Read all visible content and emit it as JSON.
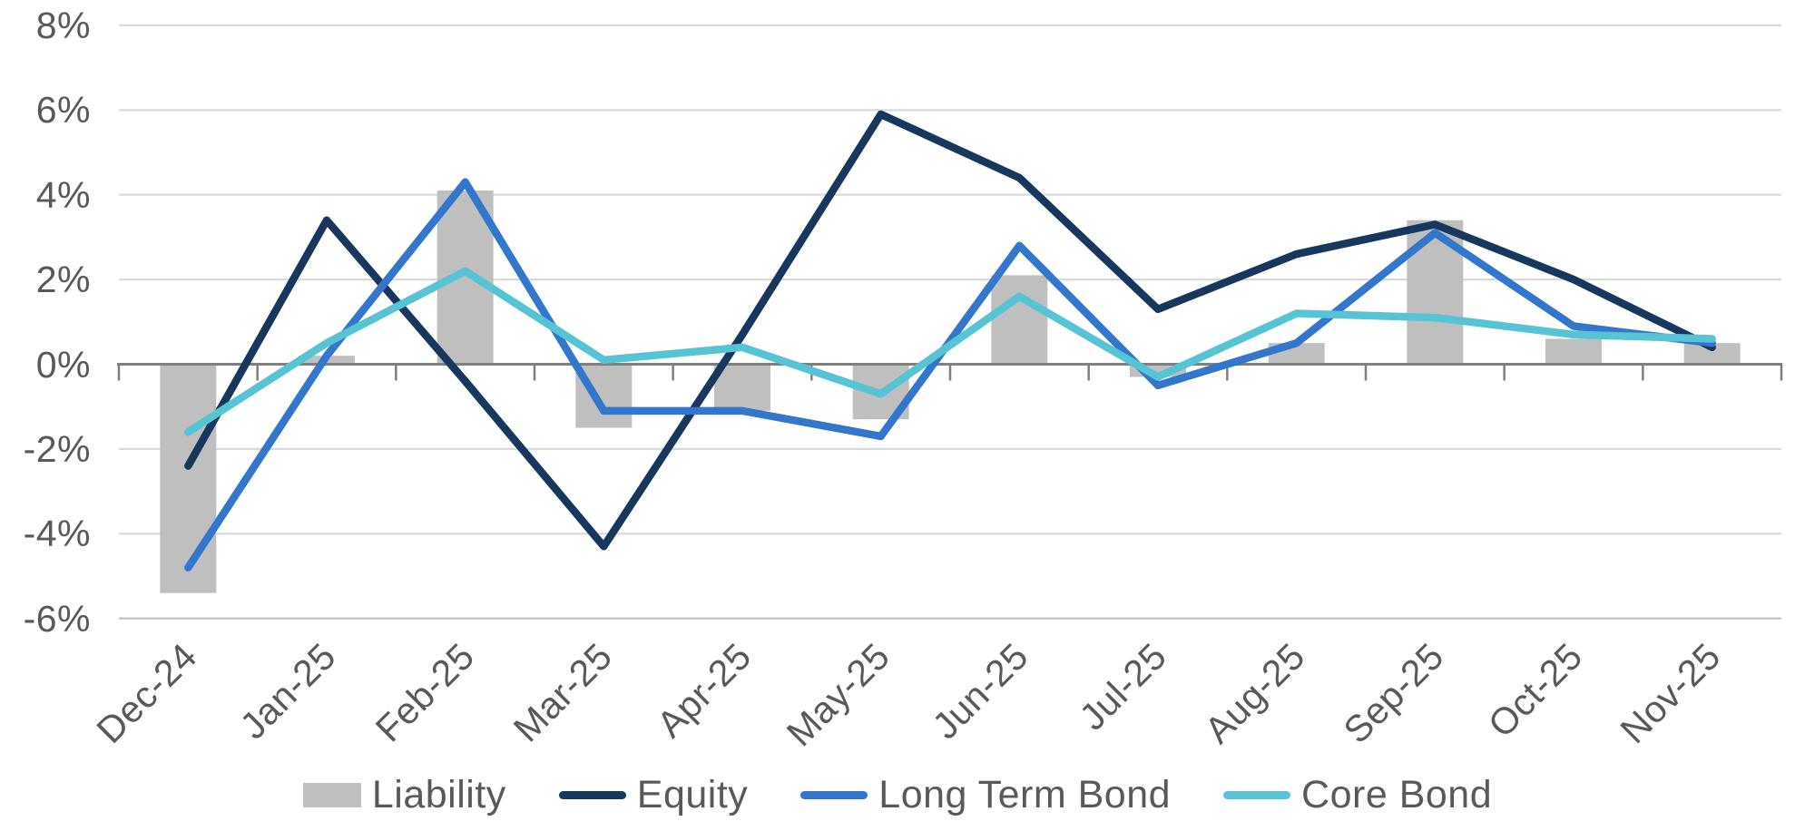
{
  "chart_data": {
    "type": "combo-bar-line",
    "title": "",
    "categories": [
      "Dec-24",
      "Jan-25",
      "Feb-25",
      "Mar-25",
      "Apr-25",
      "May-25",
      "Jun-25",
      "Jul-25",
      "Aug-25",
      "Sep-25",
      "Oct-25",
      "Nov-25"
    ],
    "y_axis": {
      "unit": "%",
      "min": -6,
      "max": 8,
      "step": 2,
      "tick_labels": [
        "8%",
        "6%",
        "4%",
        "2%",
        "0%",
        "-2%",
        "-4%",
        "-6%"
      ]
    },
    "grid": true,
    "legend_position": "bottom",
    "series": [
      {
        "name": "Liability",
        "type": "bar",
        "color": "#bfbfbf",
        "values": [
          -5.4,
          0.2,
          4.1,
          -1.5,
          -1.1,
          -1.3,
          2.1,
          -0.3,
          0.5,
          3.4,
          0.6,
          0.5
        ]
      },
      {
        "name": "Equity",
        "type": "line",
        "color": "#17375c",
        "values": [
          -2.4,
          3.4,
          -0.4,
          -4.3,
          0.7,
          5.9,
          4.4,
          1.3,
          2.6,
          3.3,
          2.0,
          0.4
        ]
      },
      {
        "name": "Long Term Bond",
        "type": "line",
        "color": "#3377cd",
        "values": [
          -4.8,
          0.2,
          4.3,
          -1.1,
          -1.1,
          -1.7,
          2.8,
          -0.5,
          0.5,
          3.1,
          0.9,
          0.5
        ]
      },
      {
        "name": "Core Bond",
        "type": "line",
        "color": "#57c4d5",
        "values": [
          -1.6,
          0.5,
          2.2,
          0.1,
          0.4,
          -0.7,
          1.6,
          -0.3,
          1.2,
          1.1,
          0.7,
          0.6
        ]
      }
    ]
  },
  "style_colors": {
    "axis_line": "#7f7f7f",
    "gridline": "#d9d9d9",
    "bottom_gridline": "#bdbdbd",
    "text": "#595959",
    "background": "#ffffff"
  }
}
